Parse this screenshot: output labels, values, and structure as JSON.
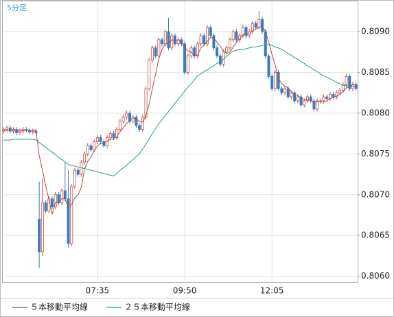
{
  "chart_data": {
    "type": "candlestick",
    "title": "5分足",
    "categories": [
      null,
      null,
      null,
      null,
      null,
      null,
      null,
      null,
      null,
      null,
      null,
      null,
      null,
      null,
      null,
      null,
      null,
      null,
      null,
      null,
      null,
      null,
      null,
      null,
      null,
      null,
      null,
      null,
      null,
      "07:35",
      null,
      null,
      null,
      null,
      null,
      null,
      null,
      null,
      null,
      null,
      null,
      null,
      null,
      null,
      null,
      null,
      null,
      null,
      null,
      null,
      null,
      null,
      null,
      null,
      null,
      null,
      "09:50",
      null,
      null,
      null,
      null,
      null,
      null,
      null,
      null,
      null,
      null,
      null,
      null,
      null,
      null,
      null,
      null,
      null,
      null,
      null,
      null,
      null,
      null,
      null,
      null,
      null,
      null,
      "12:05",
      null,
      null,
      null,
      null,
      null,
      null,
      null,
      null,
      null,
      null,
      null,
      null,
      null,
      null,
      null,
      null,
      null,
      null,
      null,
      null,
      null,
      null,
      null,
      null,
      null,
      null
    ],
    "open": [
      0.80778,
      0.8078,
      0.80782,
      0.80778,
      0.8078,
      0.80776,
      0.80778,
      0.8078,
      0.80779,
      0.80777,
      0.80778,
      0.8067,
      0.8063,
      0.8069,
      0.8068,
      0.80695,
      0.80685,
      0.807,
      0.8069,
      0.80705,
      0.80695,
      0.8064,
      0.8071,
      0.8073,
      0.80725,
      0.8074,
      0.8075,
      0.8076,
      0.80755,
      0.80765,
      0.8077,
      0.80765,
      0.8076,
      0.8077,
      0.80775,
      0.8077,
      0.8078,
      0.8079,
      0.80795,
      0.808,
      0.8079,
      0.80795,
      0.80785,
      0.8078,
      0.80795,
      0.8083,
      0.80865,
      0.8088,
      0.8087,
      0.8089,
      0.80885,
      0.809,
      0.8088,
      0.80895,
      0.80885,
      0.8089,
      0.80885,
      0.8085,
      0.8087,
      0.8088,
      0.8087,
      0.80885,
      0.80895,
      0.80885,
      0.80905,
      0.80895,
      0.8088,
      0.8087,
      0.8086,
      0.80875,
      0.8088,
      0.8089,
      0.809,
      0.8089,
      0.80895,
      0.80905,
      0.80895,
      0.809,
      0.8091,
      0.80905,
      0.80915,
      0.809,
      0.8087,
      0.80845,
      0.8083,
      0.8085,
      0.8083,
      0.80825,
      0.8083,
      0.8082,
      0.80825,
      0.80815,
      0.8082,
      0.8081,
      0.80815,
      0.8082,
      0.80815,
      0.80805,
      0.80815,
      0.80815,
      0.8082,
      0.80818,
      0.80823,
      0.8082,
      0.80825,
      0.80828,
      0.80835,
      0.80845,
      0.8083,
      0.80835
    ],
    "high": [
      0.80783,
      0.80785,
      0.80785,
      0.80783,
      0.80783,
      0.80781,
      0.80783,
      0.80783,
      0.80782,
      0.80781,
      0.80781,
      0.80716,
      0.8072,
      0.80693,
      0.80698,
      0.80698,
      0.80703,
      0.80703,
      0.80708,
      0.8074,
      0.8073,
      0.80713,
      0.80733,
      0.80733,
      0.80743,
      0.80753,
      0.80763,
      0.80763,
      0.80768,
      0.80773,
      0.80773,
      0.80768,
      0.80773,
      0.80778,
      0.80778,
      0.80783,
      0.80793,
      0.80798,
      0.80803,
      0.80803,
      0.80798,
      0.80798,
      0.80788,
      0.80798,
      0.80833,
      0.80868,
      0.80883,
      0.80883,
      0.80893,
      0.80893,
      0.80903,
      0.80917,
      0.80898,
      0.80898,
      0.80893,
      0.80893,
      0.80888,
      0.80873,
      0.80883,
      0.80883,
      0.80888,
      0.80898,
      0.80898,
      0.80908,
      0.80908,
      0.80898,
      0.80883,
      0.80873,
      0.80878,
      0.80883,
      0.80893,
      0.80903,
      0.80903,
      0.80898,
      0.80908,
      0.80908,
      0.80903,
      0.80913,
      0.80913,
      0.80925,
      0.80918,
      0.80903,
      0.80873,
      0.80848,
      0.80853,
      0.80853,
      0.80833,
      0.80833,
      0.80833,
      0.80828,
      0.80828,
      0.80823,
      0.80823,
      0.80818,
      0.80823,
      0.80823,
      0.80818,
      0.80818,
      0.80818,
      0.80823,
      0.80823,
      0.80826,
      0.80826,
      0.80828,
      0.80831,
      0.80838,
      0.80848,
      0.80848,
      0.80838,
      0.80838
    ],
    "low": [
      0.80775,
      0.80777,
      0.80775,
      0.80775,
      0.80773,
      0.80773,
      0.80775,
      0.80776,
      0.80774,
      0.80774,
      0.80773,
      0.8061,
      0.80625,
      0.80677,
      0.80677,
      0.80682,
      0.80682,
      0.80687,
      0.80687,
      0.80692,
      0.80635,
      0.80637,
      0.80707,
      0.80722,
      0.80722,
      0.80737,
      0.80747,
      0.80752,
      0.80752,
      0.80762,
      0.80762,
      0.80757,
      0.80757,
      0.80767,
      0.80767,
      0.80767,
      0.80777,
      0.80787,
      0.80792,
      0.80787,
      0.80787,
      0.80782,
      0.80777,
      0.80777,
      0.80792,
      0.80827,
      0.80862,
      0.80867,
      0.80867,
      0.80882,
      0.80882,
      0.80877,
      0.80877,
      0.80882,
      0.80882,
      0.80882,
      0.80847,
      0.80847,
      0.80867,
      0.80867,
      0.80867,
      0.80882,
      0.80882,
      0.80882,
      0.80892,
      0.80877,
      0.80867,
      0.80857,
      0.80857,
      0.80872,
      0.80877,
      0.80887,
      0.80887,
      0.80887,
      0.80892,
      0.80892,
      0.80892,
      0.80897,
      0.80902,
      0.80902,
      0.80897,
      0.80867,
      0.80842,
      0.80827,
      0.80827,
      0.80827,
      0.80822,
      0.80822,
      0.80817,
      0.80817,
      0.80812,
      0.80812,
      0.80807,
      0.80807,
      0.80812,
      0.80812,
      0.80802,
      0.80802,
      0.80812,
      0.80812,
      0.80815,
      0.80815,
      0.80817,
      0.80817,
      0.80822,
      0.80825,
      0.80832,
      0.80827,
      0.80827,
      0.80827
    ],
    "close": [
      0.8078,
      0.80782,
      0.80778,
      0.8078,
      0.80776,
      0.80778,
      0.8078,
      0.80779,
      0.80777,
      0.80778,
      0.80776,
      0.8063,
      0.8069,
      0.8068,
      0.80695,
      0.80685,
      0.807,
      0.8069,
      0.80705,
      0.80695,
      0.8064,
      0.8071,
      0.8073,
      0.80725,
      0.8074,
      0.8075,
      0.8076,
      0.80755,
      0.80765,
      0.8077,
      0.80765,
      0.8076,
      0.8077,
      0.80775,
      0.8077,
      0.8078,
      0.8079,
      0.80795,
      0.808,
      0.8079,
      0.80795,
      0.80785,
      0.8078,
      0.80795,
      0.8083,
      0.80865,
      0.8088,
      0.8087,
      0.8089,
      0.80885,
      0.809,
      0.8088,
      0.80895,
      0.80885,
      0.8089,
      0.80885,
      0.8085,
      0.8087,
      0.8088,
      0.8087,
      0.80885,
      0.80895,
      0.80885,
      0.80905,
      0.80895,
      0.8088,
      0.8087,
      0.8086,
      0.80875,
      0.8088,
      0.8089,
      0.809,
      0.8089,
      0.80895,
      0.80905,
      0.80895,
      0.809,
      0.8091,
      0.80905,
      0.80915,
      0.809,
      0.8087,
      0.80845,
      0.8083,
      0.8085,
      0.8083,
      0.80825,
      0.8083,
      0.8082,
      0.80825,
      0.80815,
      0.8082,
      0.8081,
      0.80815,
      0.8082,
      0.80815,
      0.80805,
      0.80815,
      0.80815,
      0.8082,
      0.80818,
      0.80823,
      0.8082,
      0.80825,
      0.80828,
      0.80835,
      0.80845,
      0.8083,
      0.80835,
      0.8083
    ],
    "up_color": "#c0504d",
    "down_color": "#3a7cc0",
    "series": [
      {
        "name": "５本移動平均線",
        "color": "#b5483f",
        "values": [
          0.80779,
          0.80779,
          0.80779,
          0.80779,
          0.80779,
          0.80779,
          0.80779,
          0.80779,
          0.80779,
          0.80779,
          0.80779,
          0.80748,
          0.8073,
          0.80711,
          0.80694,
          0.80676,
          0.8069,
          0.8069,
          0.80695,
          0.80695,
          0.80684,
          0.80688,
          0.80696,
          0.807,
          0.80709,
          0.80731,
          0.80741,
          0.80746,
          0.80754,
          0.8076,
          0.80763,
          0.80763,
          0.80766,
          0.80768,
          0.80768,
          0.80771,
          0.80777,
          0.80782,
          0.80787,
          0.80791,
          0.80794,
          0.80793,
          0.8079,
          0.80789,
          0.80797,
          0.80811,
          0.8083,
          0.80848,
          0.80867,
          0.80878,
          0.80885,
          0.80885,
          0.8089,
          0.80889,
          0.8089,
          0.80887,
          0.80881,
          0.80876,
          0.80875,
          0.80871,
          0.80871,
          0.8088,
          0.80883,
          0.80888,
          0.80893,
          0.80892,
          0.80887,
          0.80882,
          0.80876,
          0.80873,
          0.80875,
          0.80881,
          0.80887,
          0.80891,
          0.80896,
          0.80897,
          0.80897,
          0.80901,
          0.80903,
          0.80905,
          0.80906,
          0.809,
          0.80887,
          0.80872,
          0.80859,
          0.80843,
          0.80836,
          0.80833,
          0.80831,
          0.80826,
          0.80823,
          0.80822,
          0.80818,
          0.80817,
          0.80816,
          0.80816,
          0.80813,
          0.80814,
          0.80814,
          0.80814,
          0.80815,
          0.80818,
          0.80819,
          0.80821,
          0.80823,
          0.80826,
          0.80831,
          0.80833,
          0.80835,
          0.80835
        ]
      },
      {
        "name": "２５本移動平均線",
        "color": "#2a9d7c",
        "values": [
          0.80767,
          0.80767,
          0.80767,
          0.80768,
          0.80768,
          0.80768,
          0.80768,
          0.80768,
          0.80768,
          0.80768,
          0.80767,
          0.80764,
          0.80761,
          0.80758,
          0.80755,
          0.80752,
          0.80749,
          0.80746,
          0.80743,
          0.8074,
          0.80737,
          0.80736,
          0.80735,
          0.80734,
          0.80733,
          0.80732,
          0.80731,
          0.8073,
          0.80729,
          0.80728,
          0.80727,
          0.80726,
          0.80725,
          0.80724,
          0.80723,
          0.80726,
          0.8073,
          0.80733,
          0.80736,
          0.8074,
          0.80743,
          0.80747,
          0.8075,
          0.80756,
          0.80762,
          0.80769,
          0.80775,
          0.80781,
          0.80787,
          0.80792,
          0.80797,
          0.80802,
          0.80807,
          0.80812,
          0.80817,
          0.80822,
          0.80827,
          0.80832,
          0.80836,
          0.80841,
          0.80846,
          0.80848,
          0.80851,
          0.80853,
          0.80856,
          0.80858,
          0.80861,
          0.80863,
          0.80866,
          0.8087,
          0.80873,
          0.80876,
          0.80877,
          0.80878,
          0.80878,
          0.80879,
          0.8088,
          0.80881,
          0.80881,
          0.80882,
          0.80883,
          0.80884,
          0.80884,
          0.80883,
          0.80881,
          0.8088,
          0.80878,
          0.80876,
          0.80873,
          0.80871,
          0.80868,
          0.80866,
          0.80863,
          0.80861,
          0.80858,
          0.80856,
          0.80853,
          0.80851,
          0.80848,
          0.80846,
          0.80844,
          0.80842,
          0.8084,
          0.80838,
          0.80836,
          0.80834,
          0.80834,
          0.80833,
          0.80833,
          0.80832
        ]
      }
    ],
    "ylim": [
      0.80593,
      0.80937
    ],
    "yticks": [
      {
        "value": 0.806,
        "label": "0.8060"
      },
      0.8065,
      {
        "value": 0.807,
        "label": "0.8070"
      },
      0.8075,
      {
        "value": 0.808,
        "label": "0.8080"
      },
      0.8085,
      {
        "value": 0.809,
        "label": "0.8090"
      }
    ],
    "grid": true
  }
}
